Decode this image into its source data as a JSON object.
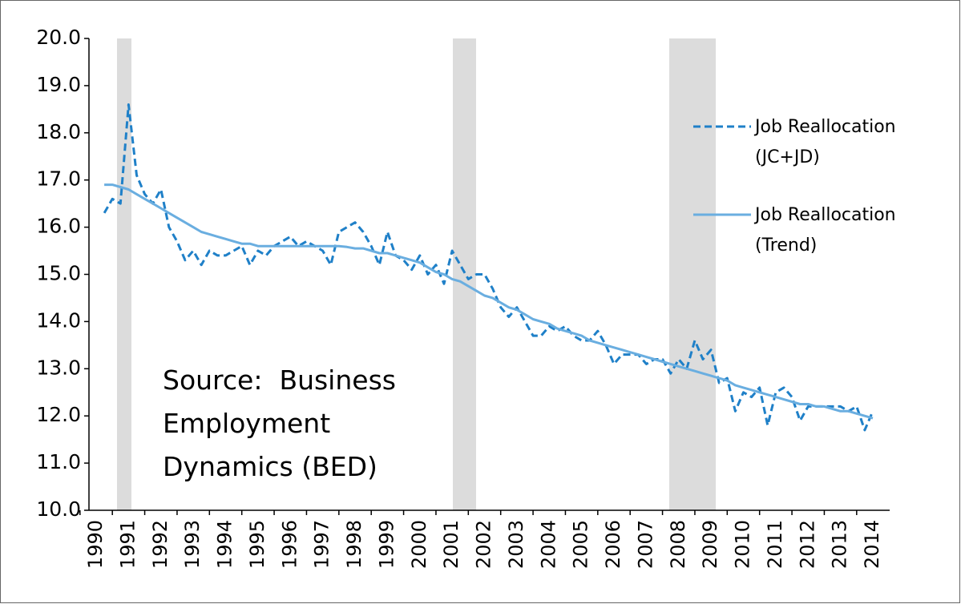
{
  "chart_data": {
    "type": "line",
    "categories": [
      "1990",
      null,
      null,
      null,
      "1991",
      null,
      null,
      null,
      "1992",
      null,
      null,
      null,
      "1993",
      null,
      null,
      null,
      "1994",
      null,
      null,
      null,
      "1995",
      null,
      null,
      null,
      "1996",
      null,
      null,
      null,
      "1997",
      null,
      null,
      null,
      "1998",
      null,
      null,
      null,
      "1999",
      null,
      null,
      null,
      "2000",
      null,
      null,
      null,
      "2001",
      null,
      null,
      null,
      "2002",
      null,
      null,
      null,
      "2003",
      null,
      null,
      null,
      "2004",
      null,
      null,
      null,
      "2005",
      null,
      null,
      null,
      "2006",
      null,
      null,
      null,
      "2007",
      null,
      null,
      null,
      "2008",
      null,
      null,
      null,
      "2009",
      null,
      null,
      null,
      "2010",
      null,
      null,
      null,
      "2011",
      null,
      null,
      null,
      "2012",
      null,
      null,
      null,
      "2013",
      null,
      null,
      null,
      "2014"
    ],
    "series": [
      {
        "name": "Job Reallocation (JC+JD)",
        "color": "#1f80c8",
        "dashed": true,
        "values": [
          null,
          16.3,
          16.6,
          16.5,
          18.6,
          17.1,
          16.7,
          16.5,
          16.8,
          16.0,
          15.7,
          15.3,
          15.5,
          15.2,
          15.5,
          15.4,
          15.4,
          15.5,
          15.6,
          15.2,
          15.5,
          15.4,
          15.6,
          15.7,
          15.8,
          15.6,
          15.7,
          15.6,
          15.5,
          15.2,
          15.9,
          16.0,
          16.1,
          15.9,
          15.6,
          15.2,
          15.9,
          15.4,
          15.3,
          15.1,
          15.4,
          15.0,
          15.2,
          14.8,
          15.5,
          15.2,
          14.9,
          15.0,
          15.0,
          14.7,
          14.3,
          14.1,
          14.3,
          14.0,
          13.7,
          13.7,
          13.9,
          13.8,
          13.9,
          13.7,
          13.6,
          13.6,
          13.8,
          13.5,
          13.1,
          13.3,
          13.3,
          13.3,
          13.1,
          13.2,
          13.2,
          12.9,
          13.2,
          13.0,
          13.6,
          13.2,
          13.4,
          12.7,
          12.8,
          12.1,
          12.5,
          12.4,
          12.6,
          11.8,
          12.5,
          12.6,
          12.4,
          11.9,
          12.2,
          12.2,
          12.2,
          12.2,
          12.2,
          12.1,
          12.2,
          11.7,
          12.1
        ]
      },
      {
        "name": "Job Reallocation (Trend)",
        "color": "#6aaee0",
        "dashed": false,
        "values": [
          null,
          16.9,
          16.9,
          16.85,
          16.8,
          16.7,
          16.6,
          16.5,
          16.4,
          16.3,
          16.2,
          16.1,
          16.0,
          15.9,
          15.85,
          15.8,
          15.75,
          15.7,
          15.65,
          15.65,
          15.6,
          15.6,
          15.6,
          15.6,
          15.6,
          15.6,
          15.6,
          15.6,
          15.6,
          15.6,
          15.6,
          15.58,
          15.55,
          15.55,
          15.5,
          15.45,
          15.45,
          15.4,
          15.35,
          15.3,
          15.25,
          15.15,
          15.05,
          15.0,
          14.9,
          14.85,
          14.75,
          14.65,
          14.55,
          14.5,
          14.4,
          14.3,
          14.25,
          14.15,
          14.05,
          14.0,
          13.95,
          13.85,
          13.8,
          13.75,
          13.7,
          13.6,
          13.55,
          13.5,
          13.45,
          13.4,
          13.35,
          13.3,
          13.25,
          13.2,
          13.15,
          13.1,
          13.05,
          13.0,
          12.95,
          12.9,
          12.85,
          12.8,
          12.75,
          12.65,
          12.6,
          12.55,
          12.5,
          12.45,
          12.4,
          12.35,
          12.3,
          12.25,
          12.25,
          12.2,
          12.2,
          12.15,
          12.1,
          12.1,
          12.05,
          12.0,
          11.95
        ]
      }
    ],
    "ylim": [
      10,
      20
    ],
    "yticks": [
      {
        "value": 10,
        "label": "10.0"
      },
      {
        "value": 11,
        "label": "11.0"
      },
      {
        "value": 12,
        "label": "12.0"
      },
      {
        "value": 13,
        "label": "13.0"
      },
      {
        "value": 14,
        "label": "14.0"
      },
      {
        "value": 15,
        "label": "15.0"
      },
      {
        "value": 16,
        "label": "16.0"
      },
      {
        "value": 17,
        "label": "17.0"
      },
      {
        "value": 18,
        "label": "18.0"
      },
      {
        "value": 19,
        "label": "19.0"
      },
      {
        "value": 20,
        "label": "20.0"
      }
    ],
    "grid": false,
    "legend": "right",
    "annotation": "Source:  Business Employment Dynamics (BED)"
  }
}
